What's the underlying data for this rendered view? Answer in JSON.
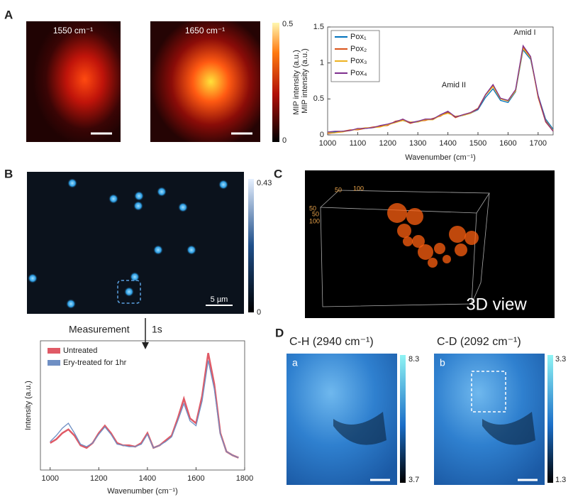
{
  "panel_labels": [
    "A",
    "B",
    "C",
    "D"
  ],
  "panel_a": {
    "image_titles": [
      "1550 cm⁻¹",
      "1650 cm⁻¹"
    ],
    "colorbar_label": "MIP intensity (a.u.)",
    "colorbar_max": "0.5",
    "colorbar_min": "0"
  },
  "panel_b": {
    "colorbar_max": "0.43",
    "colorbar_min": "0",
    "scale_bar": "5 µm",
    "arrow_label": "Measurement",
    "arrow_time": "1s"
  },
  "panel_c": {
    "axis_labels": [
      "50",
      "100",
      "50",
      "50",
      "100"
    ],
    "caption": "3D view"
  },
  "panel_d": {
    "titles": [
      "C-H (2940 cm⁻¹)",
      "C-D (2092 cm⁻¹)"
    ],
    "sublabels": [
      "a",
      "b"
    ],
    "colorbar_a": [
      "8.3",
      "3.7"
    ],
    "colorbar_b": [
      "3.3",
      "1.3"
    ]
  },
  "chart_data": [
    {
      "type": "line",
      "y_label": "MIP intensity (a.u.)",
      "x_label": "Wavenumber (cm⁻¹)",
      "annotations": [
        "Amid II",
        "Amid I"
      ],
      "x": [
        1000,
        1025,
        1050,
        1075,
        1100,
        1125,
        1150,
        1175,
        1200,
        1225,
        1250,
        1275,
        1300,
        1325,
        1350,
        1375,
        1400,
        1425,
        1450,
        1475,
        1500,
        1525,
        1550,
        1575,
        1600,
        1625,
        1650,
        1675,
        1700,
        1725,
        1750
      ],
      "xlim": [
        1000,
        1750
      ],
      "xticks": [
        1000,
        1100,
        1200,
        1300,
        1400,
        1500,
        1600,
        1700
      ],
      "ylim": [
        0,
        1.5
      ],
      "yticks": [
        0,
        0.5,
        1,
        1.5
      ],
      "legend": "upper left",
      "series": [
        {
          "name": "Pox₁",
          "color": "#0072bd",
          "values": [
            0.03,
            0.04,
            0.05,
            0.06,
            0.08,
            0.09,
            0.1,
            0.12,
            0.14,
            0.18,
            0.2,
            0.17,
            0.18,
            0.21,
            0.22,
            0.27,
            0.31,
            0.25,
            0.27,
            0.3,
            0.35,
            0.52,
            0.64,
            0.48,
            0.45,
            0.6,
            1.18,
            1.05,
            0.55,
            0.22,
            0.08
          ]
        },
        {
          "name": "Pox₂",
          "color": "#d95319",
          "values": [
            0.02,
            0.03,
            0.05,
            0.07,
            0.07,
            0.09,
            0.11,
            0.12,
            0.13,
            0.19,
            0.21,
            0.16,
            0.19,
            0.2,
            0.23,
            0.26,
            0.32,
            0.24,
            0.28,
            0.31,
            0.37,
            0.56,
            0.69,
            0.5,
            0.47,
            0.62,
            1.22,
            1.08,
            0.52,
            0.18,
            0.05
          ]
        },
        {
          "name": "Pox₃",
          "color": "#edb120",
          "values": [
            0.03,
            0.03,
            0.04,
            0.06,
            0.08,
            0.1,
            0.1,
            0.11,
            0.14,
            0.17,
            0.2,
            0.18,
            0.18,
            0.21,
            0.21,
            0.27,
            0.3,
            0.26,
            0.27,
            0.3,
            0.36,
            0.55,
            0.67,
            0.5,
            0.47,
            0.61,
            1.2,
            1.07,
            0.54,
            0.2,
            0.06
          ]
        },
        {
          "name": "Pox₄",
          "color": "#7e2f8e",
          "values": [
            0.04,
            0.05,
            0.05,
            0.06,
            0.09,
            0.09,
            0.1,
            0.13,
            0.15,
            0.18,
            0.22,
            0.17,
            0.19,
            0.22,
            0.22,
            0.28,
            0.33,
            0.25,
            0.28,
            0.31,
            0.36,
            0.56,
            0.7,
            0.51,
            0.48,
            0.63,
            1.24,
            1.09,
            0.55,
            0.19,
            0.05
          ]
        }
      ]
    },
    {
      "type": "line",
      "y_label": "Intensity (a.u.)",
      "x_label": "Wavenumber (cm⁻¹)",
      "x": [
        1000,
        1025,
        1050,
        1075,
        1100,
        1125,
        1150,
        1175,
        1200,
        1225,
        1250,
        1275,
        1300,
        1325,
        1350,
        1375,
        1400,
        1425,
        1450,
        1475,
        1500,
        1525,
        1550,
        1575,
        1600,
        1625,
        1650,
        1675,
        1700,
        1725,
        1750,
        1775
      ],
      "xlim": [
        960,
        1800
      ],
      "xticks": [
        1000,
        1200,
        1400,
        1600,
        1800
      ],
      "ylim": [
        0,
        1.05
      ],
      "legend": "upper left",
      "series": [
        {
          "name": "Untreated",
          "color": "#e05a66",
          "values": [
            0.22,
            0.25,
            0.3,
            0.33,
            0.28,
            0.2,
            0.18,
            0.22,
            0.3,
            0.36,
            0.3,
            0.22,
            0.2,
            0.2,
            0.19,
            0.22,
            0.3,
            0.18,
            0.2,
            0.24,
            0.28,
            0.42,
            0.58,
            0.42,
            0.38,
            0.6,
            0.95,
            0.7,
            0.3,
            0.15,
            0.12,
            0.1
          ]
        },
        {
          "name": "Ery-treated for 1hr",
          "color": "#6f8fc4",
          "values": [
            0.23,
            0.28,
            0.34,
            0.38,
            0.3,
            0.21,
            0.19,
            0.22,
            0.29,
            0.35,
            0.29,
            0.21,
            0.2,
            0.19,
            0.19,
            0.21,
            0.29,
            0.18,
            0.2,
            0.23,
            0.27,
            0.4,
            0.54,
            0.4,
            0.36,
            0.56,
            0.89,
            0.66,
            0.29,
            0.15,
            0.12,
            0.1
          ]
        }
      ]
    }
  ]
}
